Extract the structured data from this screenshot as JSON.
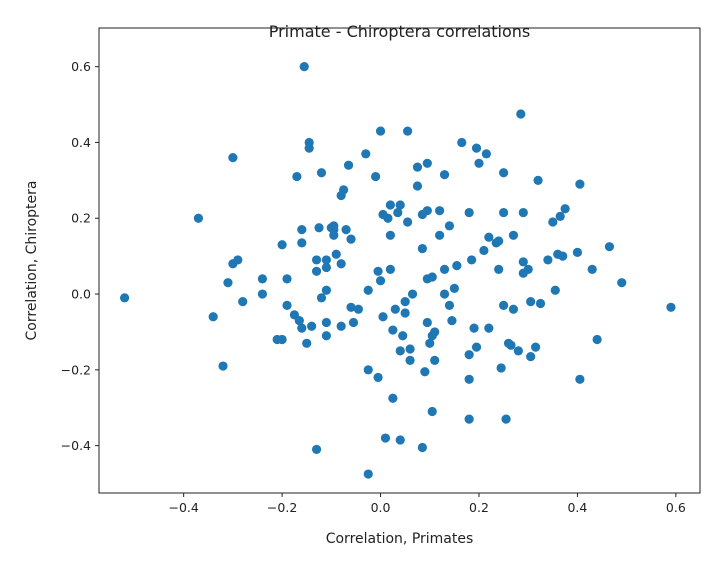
{
  "chart_data": {
    "type": "scatter",
    "title": "Primate - Chiroptera correlations",
    "xlabel": "Correlation, Primates",
    "ylabel": "Correlation, Chiroptera",
    "xlim": [
      -0.572,
      0.649
    ],
    "ylim": [
      -0.525,
      0.702
    ],
    "xticks": [
      -0.4,
      -0.2,
      0.0,
      0.2,
      0.4,
      0.6
    ],
    "xtick_labels": [
      "−0.4",
      "−0.2",
      "0.0",
      "0.2",
      "0.4",
      "0.6"
    ],
    "yticks": [
      -0.4,
      -0.2,
      0.0,
      0.2,
      0.4,
      0.6
    ],
    "ytick_labels": [
      "−0.4",
      "−0.2",
      "0.0",
      "0.2",
      "0.4",
      "0.6"
    ],
    "grid": false,
    "color": "#1f77b4",
    "points": [
      [
        -0.52,
        -0.01
      ],
      [
        -0.37,
        0.2
      ],
      [
        -0.3,
        0.36
      ],
      [
        -0.34,
        -0.06
      ],
      [
        -0.32,
        -0.19
      ],
      [
        -0.31,
        0.03
      ],
      [
        -0.3,
        0.08
      ],
      [
        -0.29,
        0.09
      ],
      [
        -0.28,
        -0.02
      ],
      [
        -0.24,
        0.04
      ],
      [
        -0.24,
        0.0
      ],
      [
        -0.21,
        -0.12
      ],
      [
        -0.2,
        -0.12
      ],
      [
        -0.2,
        0.13
      ],
      [
        -0.19,
        0.04
      ],
      [
        -0.19,
        -0.03
      ],
      [
        -0.17,
        0.31
      ],
      [
        -0.155,
        0.6
      ],
      [
        -0.145,
        0.4
      ],
      [
        -0.145,
        0.385
      ],
      [
        -0.175,
        -0.055
      ],
      [
        -0.165,
        -0.07
      ],
      [
        -0.16,
        -0.09
      ],
      [
        -0.16,
        0.17
      ],
      [
        -0.16,
        0.135
      ],
      [
        -0.15,
        -0.13
      ],
      [
        -0.14,
        -0.085
      ],
      [
        -0.13,
        0.09
      ],
      [
        -0.13,
        0.06
      ],
      [
        -0.13,
        -0.41
      ],
      [
        -0.125,
        0.175
      ],
      [
        -0.12,
        0.32
      ],
      [
        -0.12,
        -0.01
      ],
      [
        -0.11,
        0.07
      ],
      [
        -0.11,
        0.01
      ],
      [
        -0.11,
        0.09
      ],
      [
        -0.11,
        -0.11
      ],
      [
        -0.11,
        -0.075
      ],
      [
        -0.1,
        0.175
      ],
      [
        -0.095,
        0.17
      ],
      [
        -0.095,
        0.18
      ],
      [
        -0.095,
        0.155
      ],
      [
        -0.09,
        0.105
      ],
      [
        -0.08,
        0.26
      ],
      [
        -0.075,
        0.275
      ],
      [
        -0.08,
        0.08
      ],
      [
        -0.08,
        -0.085
      ],
      [
        -0.065,
        0.34
      ],
      [
        -0.07,
        0.17
      ],
      [
        -0.06,
        0.145
      ],
      [
        -0.06,
        -0.035
      ],
      [
        -0.055,
        -0.075
      ],
      [
        -0.045,
        -0.04
      ],
      [
        -0.03,
        0.37
      ],
      [
        -0.025,
        0.01
      ],
      [
        -0.025,
        -0.2
      ],
      [
        -0.025,
        -0.475
      ],
      [
        -0.005,
        -0.22
      ],
      [
        -0.01,
        0.31
      ],
      [
        0.0,
        0.43
      ],
      [
        -0.005,
        0.06
      ],
      [
        0.0,
        0.035
      ],
      [
        0.005,
        0.21
      ],
      [
        0.005,
        -0.06
      ],
      [
        0.01,
        -0.38
      ],
      [
        0.015,
        0.2
      ],
      [
        0.02,
        0.155
      ],
      [
        0.02,
        0.235
      ],
      [
        0.02,
        0.065
      ],
      [
        0.025,
        -0.275
      ],
      [
        0.025,
        -0.095
      ],
      [
        0.03,
        -0.04
      ],
      [
        0.035,
        0.215
      ],
      [
        0.04,
        0.235
      ],
      [
        0.04,
        -0.15
      ],
      [
        0.04,
        -0.385
      ],
      [
        0.045,
        -0.11
      ],
      [
        0.05,
        -0.02
      ],
      [
        0.05,
        -0.05
      ],
      [
        0.055,
        0.19
      ],
      [
        0.06,
        -0.145
      ],
      [
        0.06,
        -0.175
      ],
      [
        0.065,
        0.0
      ],
      [
        0.055,
        0.43
      ],
      [
        0.075,
        0.335
      ],
      [
        0.075,
        0.285
      ],
      [
        0.085,
        0.21
      ],
      [
        0.085,
        0.12
      ],
      [
        0.09,
        -0.205
      ],
      [
        0.085,
        -0.405
      ],
      [
        0.095,
        0.345
      ],
      [
        0.095,
        0.22
      ],
      [
        0.095,
        0.04
      ],
      [
        0.095,
        -0.075
      ],
      [
        0.1,
        -0.13
      ],
      [
        0.105,
        -0.31
      ],
      [
        0.105,
        0.045
      ],
      [
        0.105,
        -0.11
      ],
      [
        0.11,
        -0.1
      ],
      [
        0.11,
        -0.175
      ],
      [
        0.12,
        0.22
      ],
      [
        0.12,
        0.155
      ],
      [
        0.13,
        0.0
      ],
      [
        0.13,
        0.315
      ],
      [
        0.13,
        0.065
      ],
      [
        0.14,
        0.18
      ],
      [
        0.14,
        -0.03
      ],
      [
        0.145,
        -0.07
      ],
      [
        0.15,
        0.015
      ],
      [
        0.155,
        0.075
      ],
      [
        0.165,
        0.4
      ],
      [
        0.18,
        0.215
      ],
      [
        0.18,
        -0.16
      ],
      [
        0.18,
        -0.33
      ],
      [
        0.18,
        -0.225
      ],
      [
        0.185,
        0.09
      ],
      [
        0.19,
        -0.09
      ],
      [
        0.195,
        -0.14
      ],
      [
        0.195,
        0.385
      ],
      [
        0.2,
        0.345
      ],
      [
        0.21,
        0.115
      ],
      [
        0.215,
        0.37
      ],
      [
        0.22,
        -0.09
      ],
      [
        0.22,
        0.15
      ],
      [
        0.235,
        0.135
      ],
      [
        0.24,
        0.065
      ],
      [
        0.24,
        0.14
      ],
      [
        0.245,
        -0.195
      ],
      [
        0.25,
        0.215
      ],
      [
        0.25,
        0.32
      ],
      [
        0.25,
        -0.03
      ],
      [
        0.255,
        -0.33
      ],
      [
        0.26,
        -0.13
      ],
      [
        0.265,
        -0.135
      ],
      [
        0.27,
        0.155
      ],
      [
        0.27,
        -0.04
      ],
      [
        0.28,
        -0.15
      ],
      [
        0.285,
        0.475
      ],
      [
        0.29,
        0.085
      ],
      [
        0.29,
        0.215
      ],
      [
        0.29,
        0.055
      ],
      [
        0.3,
        0.065
      ],
      [
        0.305,
        -0.02
      ],
      [
        0.305,
        -0.165
      ],
      [
        0.315,
        -0.14
      ],
      [
        0.32,
        0.3
      ],
      [
        0.325,
        -0.025
      ],
      [
        0.34,
        0.09
      ],
      [
        0.35,
        0.19
      ],
      [
        0.355,
        0.01
      ],
      [
        0.36,
        0.105
      ],
      [
        0.365,
        0.205
      ],
      [
        0.375,
        0.225
      ],
      [
        0.37,
        0.1
      ],
      [
        0.4,
        0.11
      ],
      [
        0.405,
        0.29
      ],
      [
        0.405,
        -0.225
      ],
      [
        0.43,
        0.065
      ],
      [
        0.44,
        -0.12
      ],
      [
        0.465,
        0.125
      ],
      [
        0.49,
        0.03
      ],
      [
        0.59,
        -0.035
      ]
    ]
  }
}
